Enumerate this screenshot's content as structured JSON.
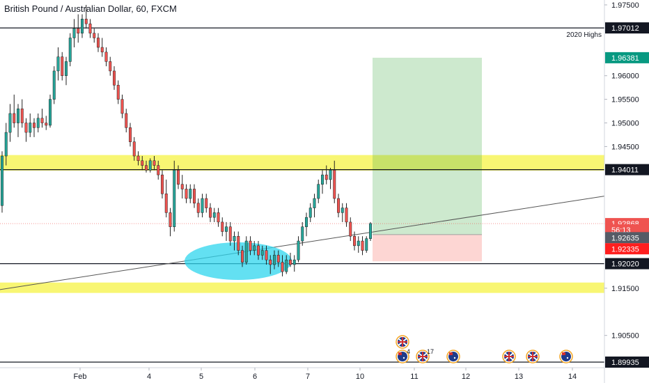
{
  "chart_data": {
    "type": "candlestick",
    "title": "British Pound / Australian Dollar, 60, FXCM",
    "y_axis": {
      "ticks": [
        "1.97500",
        "1.96000",
        "1.95500",
        "1.95000",
        "1.94500",
        "1.91500",
        "1.90500"
      ],
      "range": [
        1.8988,
        1.9758
      ]
    },
    "x_axis": {
      "ticks": [
        "Feb",
        "4",
        "5",
        "6",
        "7",
        "10",
        "11",
        "12",
        "13",
        "14"
      ]
    },
    "price_labels": [
      {
        "text": "1.97012",
        "price": 1.97012,
        "bg": "#131722",
        "fg": "#ffffff",
        "id": "line-2020-high"
      },
      {
        "text": "1.96381",
        "price": 1.96381,
        "bg": "#089981",
        "fg": "#ffffff",
        "id": "take-profit"
      },
      {
        "text": "1.94011",
        "price": 1.94011,
        "bg": "#131722",
        "fg": "#ffffff",
        "id": "resistance"
      },
      {
        "text": "1.92868",
        "price": 1.92868,
        "bg": "#ef5350",
        "fg": "#ffffff",
        "id": "last-price"
      },
      {
        "text": "56:13",
        "price": 1.92735,
        "bg": "#ef5350",
        "fg": "#ffffff",
        "id": "countdown"
      },
      {
        "text": "1.92635",
        "price": 1.9257,
        "bg": "#555b66",
        "fg": "#ffffff",
        "id": "entry"
      },
      {
        "text": "1.92335",
        "price": 1.92335,
        "bg": "#ff1f1f",
        "fg": "#ffffff",
        "id": "stop-loss"
      },
      {
        "text": "1.92020",
        "price": 1.9202,
        "bg": "#131722",
        "fg": "#ffffff",
        "id": "support"
      },
      {
        "text": "1.89935",
        "price": 1.89935,
        "bg": "#131722",
        "fg": "#ffffff",
        "id": "low-line"
      }
    ],
    "horizontal_lines": [
      {
        "price": 1.97012,
        "label": "2020 Highs"
      },
      {
        "price": 1.94011,
        "label": ""
      },
      {
        "price": 1.9202,
        "label": ""
      },
      {
        "price": 1.89935,
        "label": ""
      }
    ],
    "zones": [
      {
        "from": 1.9399,
        "to": 1.9432,
        "color": "#f7f45a"
      },
      {
        "from": 1.914,
        "to": 1.9162,
        "color": "#f7f45a"
      }
    ],
    "position": {
      "entry": 1.92635,
      "take_profit": 1.96381,
      "stop_loss": 1.92335,
      "x_from": "2020-02-10",
      "x_to": "2020-02-12"
    },
    "trendline": {
      "from": [
        0,
        1.9147
      ],
      "to": [
        1,
        1.9345
      ]
    },
    "ellipse": {
      "label": ""
    },
    "events": [
      {
        "country": "uk",
        "date": "2020-02-10"
      },
      {
        "country": "au",
        "date": "2020-02-10",
        "count": "4"
      },
      {
        "country": "uk",
        "date": "2020-02-11",
        "count": "17"
      },
      {
        "country": "au",
        "date": "2020-02-11"
      },
      {
        "country": "uk",
        "date": "2020-02-12"
      },
      {
        "country": "uk",
        "date": "2020-02-13"
      },
      {
        "country": "au",
        "date": "2020-02-13"
      }
    ],
    "candles": [
      [
        1.9325,
        1.944,
        1.931,
        1.943
      ],
      [
        1.943,
        1.95,
        1.941,
        1.948
      ],
      [
        1.948,
        1.954,
        1.946,
        1.952
      ],
      [
        1.952,
        1.956,
        1.949,
        1.95
      ],
      [
        1.95,
        1.954,
        1.947,
        1.953
      ],
      [
        1.953,
        1.955,
        1.949,
        1.95
      ],
      [
        1.95,
        1.951,
        1.946,
        1.948
      ],
      [
        1.948,
        1.952,
        1.947,
        1.95
      ],
      [
        1.95,
        1.951,
        1.947,
        1.949
      ],
      [
        1.949,
        1.952,
        1.948,
        1.951
      ],
      [
        1.951,
        1.953,
        1.949,
        1.95
      ],
      [
        1.95,
        1.9515,
        1.9485,
        1.9495
      ],
      [
        1.9495,
        1.956,
        1.949,
        1.955
      ],
      [
        1.955,
        1.962,
        1.954,
        1.961
      ],
      [
        1.961,
        1.966,
        1.959,
        1.964
      ],
      [
        1.964,
        1.965,
        1.959,
        1.96
      ],
      [
        1.96,
        1.964,
        1.958,
        1.963
      ],
      [
        1.963,
        1.969,
        1.962,
        1.968
      ],
      [
        1.968,
        1.972,
        1.966,
        1.97
      ],
      [
        1.97,
        1.973,
        1.967,
        1.969
      ],
      [
        1.969,
        1.973,
        1.968,
        1.972
      ],
      [
        1.972,
        1.975,
        1.97,
        1.971
      ],
      [
        1.971,
        1.972,
        1.968,
        1.969
      ],
      [
        1.969,
        1.97,
        1.967,
        1.968
      ],
      [
        1.968,
        1.969,
        1.965,
        1.966
      ],
      [
        1.966,
        1.968,
        1.964,
        1.965
      ],
      [
        1.965,
        1.966,
        1.962,
        1.963
      ],
      [
        1.963,
        1.964,
        1.96,
        1.961
      ],
      [
        1.961,
        1.962,
        1.957,
        1.958
      ],
      [
        1.958,
        1.959,
        1.954,
        1.955
      ],
      [
        1.955,
        1.956,
        1.951,
        1.952
      ],
      [
        1.952,
        1.953,
        1.948,
        1.949
      ],
      [
        1.949,
        1.95,
        1.945,
        1.946
      ],
      [
        1.946,
        1.947,
        1.942,
        1.943
      ],
      [
        1.943,
        1.944,
        1.941,
        1.942
      ],
      [
        1.942,
        1.943,
        1.94,
        1.941
      ],
      [
        1.941,
        1.942,
        1.9395,
        1.94
      ],
      [
        1.94,
        1.9425,
        1.9395,
        1.942
      ],
      [
        1.942,
        1.943,
        1.94,
        1.941
      ],
      [
        1.941,
        1.942,
        1.938,
        1.939
      ],
      [
        1.939,
        1.94,
        1.934,
        1.935
      ],
      [
        1.935,
        1.938,
        1.93,
        1.931
      ],
      [
        1.931,
        1.932,
        1.926,
        1.928
      ],
      [
        1.928,
        1.942,
        1.927,
        1.94
      ],
      [
        1.94,
        1.941,
        1.936,
        1.937
      ],
      [
        1.937,
        1.939,
        1.934,
        1.936
      ],
      [
        1.936,
        1.937,
        1.933,
        1.934
      ],
      [
        1.934,
        1.937,
        1.933,
        1.936
      ],
      [
        1.936,
        1.937,
        1.932,
        1.933
      ],
      [
        1.933,
        1.934,
        1.93,
        1.931
      ],
      [
        1.931,
        1.935,
        1.93,
        1.934
      ],
      [
        1.934,
        1.935,
        1.931,
        1.932
      ],
      [
        1.932,
        1.933,
        1.929,
        1.93
      ],
      [
        1.93,
        1.932,
        1.929,
        1.931
      ],
      [
        1.931,
        1.932,
        1.928,
        1.929
      ],
      [
        1.929,
        1.93,
        1.926,
        1.927
      ],
      [
        1.927,
        1.929,
        1.925,
        1.928
      ],
      [
        1.928,
        1.929,
        1.924,
        1.925
      ],
      [
        1.925,
        1.927,
        1.923,
        1.926
      ],
      [
        1.926,
        1.927,
        1.922,
        1.923
      ],
      [
        1.923,
        1.924,
        1.9195,
        1.9205
      ],
      [
        1.9205,
        1.926,
        1.92,
        1.925
      ],
      [
        1.925,
        1.926,
        1.922,
        1.923
      ],
      [
        1.923,
        1.925,
        1.922,
        1.924
      ],
      [
        1.924,
        1.925,
        1.921,
        1.922
      ],
      [
        1.922,
        1.924,
        1.921,
        1.923
      ],
      [
        1.923,
        1.924,
        1.92,
        1.921
      ],
      [
        1.921,
        1.922,
        1.918,
        1.92
      ],
      [
        1.92,
        1.923,
        1.919,
        1.922
      ],
      [
        1.922,
        1.923,
        1.9195,
        1.9205
      ],
      [
        1.9205,
        1.922,
        1.9175,
        1.9185
      ],
      [
        1.9185,
        1.922,
        1.918,
        1.921
      ],
      [
        1.921,
        1.9225,
        1.9195,
        1.92
      ],
      [
        1.92,
        1.922,
        1.9185,
        1.921
      ],
      [
        1.921,
        1.926,
        1.9205,
        1.925
      ],
      [
        1.925,
        1.929,
        1.924,
        1.928
      ],
      [
        1.928,
        1.931,
        1.926,
        1.93
      ],
      [
        1.93,
        1.933,
        1.929,
        1.932
      ],
      [
        1.932,
        1.935,
        1.93,
        1.934
      ],
      [
        1.934,
        1.938,
        1.933,
        1.937
      ],
      [
        1.937,
        1.94,
        1.935,
        1.939
      ],
      [
        1.939,
        1.941,
        1.937,
        1.938
      ],
      [
        1.938,
        1.9405,
        1.936,
        1.94
      ],
      [
        1.94,
        1.942,
        1.933,
        1.934
      ],
      [
        1.934,
        1.935,
        1.93,
        1.931
      ],
      [
        1.931,
        1.933,
        1.929,
        1.932
      ],
      [
        1.932,
        1.933,
        1.928,
        1.929
      ],
      [
        1.929,
        1.93,
        1.925,
        1.926
      ],
      [
        1.926,
        1.927,
        1.923,
        1.924
      ],
      [
        1.924,
        1.926,
        1.9225,
        1.925
      ],
      [
        1.925,
        1.926,
        1.922,
        1.923
      ],
      [
        1.923,
        1.926,
        1.9225,
        1.9255
      ],
      [
        1.9255,
        1.929,
        1.925,
        1.9287
      ]
    ]
  }
}
